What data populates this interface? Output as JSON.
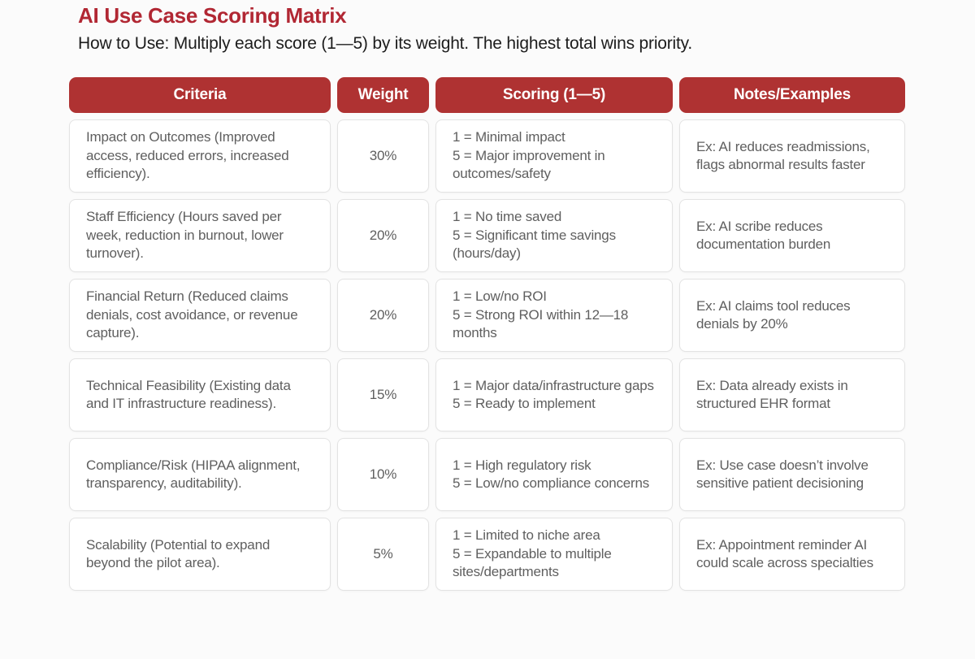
{
  "page": {
    "title": "AI Use Case Scoring Matrix",
    "subtitle": "How to Use: Multiply each score (1—5) by its weight. The highest total wins priority."
  },
  "colors": {
    "accent_red_header": "#af3232",
    "title_red": "#b12733",
    "cell_border": "#e3e3e3",
    "body_text": "#5f5f5f",
    "page_background": "#fbfbfb"
  },
  "table": {
    "headers": [
      "Criteria",
      "Weight",
      "Scoring (1—5)",
      "Notes/Examples"
    ],
    "rows": [
      {
        "criteria": "Impact on Outcomes (Improved access, reduced errors, increased efficiency).",
        "weight": "30%",
        "scoring_low": "1 = Minimal impact",
        "scoring_high": "5 = Major improvement in outcomes/safety",
        "notes": "Ex: AI reduces readmissions, flags abnormal results faster"
      },
      {
        "criteria": "Staff Efficiency (Hours saved per week, reduction in burnout, lower turnover).",
        "weight": "20%",
        "scoring_low": "1 = No time saved",
        "scoring_high": "5 = Significant time savings (hours/day)",
        "notes": "Ex: AI scribe reduces documentation burden"
      },
      {
        "criteria": "Financial Return (Reduced claims denials, cost avoidance, or revenue capture).",
        "weight": "20%",
        "scoring_low": "1 = Low/no ROI",
        "scoring_high": "5 = Strong ROI within 12—18 months",
        "notes": "Ex: AI claims tool reduces denials by 20%"
      },
      {
        "criteria": "Technical Feasibility (Existing data and IT infrastructure readiness).",
        "weight": "15%",
        "scoring_low": "1 = Major data/infrastructure gaps",
        "scoring_high": "5 = Ready to implement",
        "notes": "Ex: Data already exists in structured EHR format"
      },
      {
        "criteria": "Compliance/Risk (HIPAA alignment, transparency, auditability).",
        "weight": "10%",
        "scoring_low": "1 = High regulatory risk",
        "scoring_high": "5 = Low/no compliance concerns",
        "notes": "Ex: Use case doesn’t involve sensitive patient decisioning"
      },
      {
        "criteria": "Scalability (Potential to expand beyond the pilot area).",
        "weight": "5%",
        "scoring_low": "1 = Limited to niche area",
        "scoring_high": "5 = Expandable to multiple sites/departments",
        "notes": "Ex: Appointment reminder AI could scale across specialties"
      }
    ]
  }
}
